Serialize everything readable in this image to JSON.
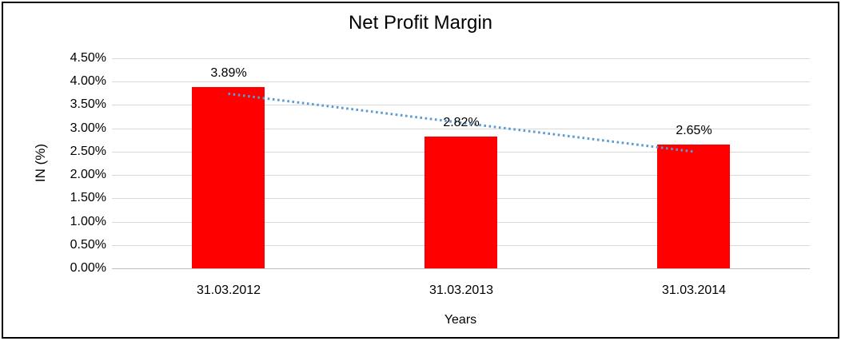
{
  "chart": {
    "title": "Net Profit Margin",
    "y_axis_title": "IN (%)",
    "x_axis_title": "Years"
  },
  "chart_data": {
    "type": "bar",
    "title": "Net Profit Margin",
    "categories": [
      "31.03.2012",
      "31.03.2013",
      "31.03.2014"
    ],
    "values": [
      3.89,
      2.82,
      2.65
    ],
    "data_labels": [
      "3.89%",
      "2.82%",
      "2.65%"
    ],
    "xlabel": "Years",
    "ylabel": "IN (%)",
    "ylim": [
      0,
      4.5
    ],
    "ytick_step": 0.5,
    "ytick_labels": [
      "0.00%",
      "0.50%",
      "1.00%",
      "1.50%",
      "2.00%",
      "2.50%",
      "3.00%",
      "3.50%",
      "4.00%",
      "4.50%"
    ],
    "grid": true,
    "legend": "none",
    "bar_color": "#ff0000",
    "gridline_color": "#d9d9d9",
    "trendline": {
      "type": "linear",
      "style": "dotted",
      "color": "#5b9bd5",
      "endpoints_values": [
        3.74,
        2.5
      ]
    }
  }
}
